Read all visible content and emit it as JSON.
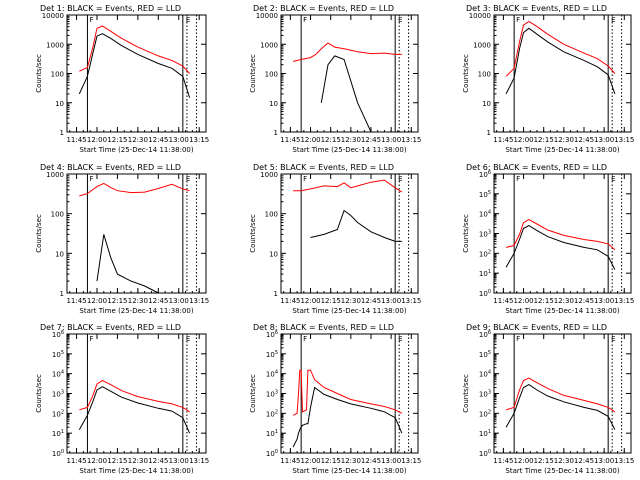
{
  "page": {
    "width": 640,
    "height": 480
  },
  "colors": {
    "events": "#000000",
    "lld": "#ff0000",
    "axes": "#000000",
    "background": "#ffffff"
  },
  "shared": {
    "xlabel": "Start Time (25-Dec-14 11:38:00)",
    "ylabel": "Counts/sec",
    "xticks": [
      "11:45",
      "12:00",
      "12:15",
      "12:30",
      "12:45",
      "13:00",
      "13:15"
    ],
    "xlim": [
      "11:38",
      "13:20"
    ],
    "solid_vlines": [
      "11:53",
      "13:03"
    ],
    "dotted_vlines": [
      "13:06",
      "13:13"
    ],
    "marker_F_text": "F",
    "marker_E_text": "E"
  },
  "chart_data": [
    {
      "id": "det1",
      "type": "line",
      "title": "Det 1: BLACK = Events, RED = LLD",
      "yscale": "log",
      "ylim": [
        1,
        10000
      ],
      "yticks": [
        "1",
        "10",
        "100",
        "1000",
        "10000"
      ],
      "x": [
        "11:47",
        "11:53",
        "11:57",
        "12:00",
        "12:04",
        "12:10",
        "12:18",
        "12:30",
        "12:45",
        "12:55",
        "13:03",
        "13:08"
      ],
      "series": [
        {
          "name": "LLD",
          "color": "#ff0000",
          "values": [
            120,
            160,
            800,
            3500,
            4200,
            2800,
            1600,
            800,
            400,
            280,
            180,
            100
          ]
        },
        {
          "name": "Events",
          "color": "#000000",
          "values": [
            20,
            80,
            500,
            1900,
            2300,
            1600,
            900,
            450,
            220,
            150,
            80,
            15
          ]
        }
      ]
    },
    {
      "id": "det2",
      "type": "line",
      "title": "Det 2: BLACK = Events, RED = LLD",
      "yscale": "log",
      "ylim": [
        1,
        10000
      ],
      "yticks": [
        "1",
        "10",
        "100",
        "1000",
        "10000"
      ],
      "x": [
        "11:47",
        "11:53",
        "12:00",
        "12:04",
        "12:08",
        "12:13",
        "12:18",
        "12:25",
        "12:35",
        "12:45",
        "12:55",
        "13:03",
        "13:08"
      ],
      "series": [
        {
          "name": "LLD",
          "color": "#ff0000",
          "values": [
            260,
            300,
            350,
            450,
            700,
            1100,
            800,
            700,
            550,
            480,
            500,
            450,
            450
          ]
        },
        {
          "name": "Events",
          "color": "#000000",
          "values": [
            null,
            null,
            null,
            null,
            10,
            200,
            400,
            300,
            10,
            1,
            null,
            null,
            null
          ]
        }
      ]
    },
    {
      "id": "det3",
      "type": "line",
      "title": "Det 3: BLACK = Events, RED = LLD",
      "yscale": "log",
      "ylim": [
        1,
        10000
      ],
      "yticks": [
        "1",
        "10",
        "100",
        "1000",
        "10000"
      ],
      "x": [
        "11:47",
        "11:53",
        "11:57",
        "12:00",
        "12:04",
        "12:10",
        "12:18",
        "12:30",
        "12:45",
        "12:55",
        "13:03",
        "13:08"
      ],
      "series": [
        {
          "name": "LLD",
          "color": "#ff0000",
          "values": [
            80,
            150,
            1200,
            4500,
            6000,
            4000,
            2200,
            1000,
            500,
            320,
            180,
            100
          ]
        },
        {
          "name": "Events",
          "color": "#000000",
          "values": [
            20,
            70,
            700,
            2500,
            3500,
            2200,
            1200,
            550,
            280,
            170,
            90,
            20
          ]
        }
      ]
    },
    {
      "id": "det4",
      "type": "line",
      "title": "Det 4: BLACK = Events, RED = LLD",
      "yscale": "log",
      "ylim": [
        1,
        1000
      ],
      "yticks": [
        "1",
        "10",
        "100",
        "1000"
      ],
      "x": [
        "11:47",
        "11:53",
        "12:00",
        "12:05",
        "12:10",
        "12:15",
        "12:25",
        "12:35",
        "12:45",
        "12:55",
        "13:03",
        "13:08"
      ],
      "series": [
        {
          "name": "LLD",
          "color": "#ff0000",
          "values": [
            280,
            320,
            480,
            580,
            460,
            380,
            340,
            350,
            430,
            550,
            420,
            380
          ]
        },
        {
          "name": "Events",
          "color": "#000000",
          "values": [
            null,
            null,
            2,
            30,
            8,
            3,
            2,
            1.5,
            1,
            null,
            null,
            null
          ]
        }
      ]
    },
    {
      "id": "det5",
      "type": "line",
      "title": "Det 5: BLACK = Events, RED = LLD",
      "yscale": "log",
      "ylim": [
        1,
        1000
      ],
      "yticks": [
        "1",
        "10",
        "100",
        "1000"
      ],
      "x": [
        "11:47",
        "11:53",
        "12:00",
        "12:10",
        "12:20",
        "12:25",
        "12:30",
        "12:35",
        "12:45",
        "12:55",
        "13:03",
        "13:08"
      ],
      "series": [
        {
          "name": "LLD",
          "color": "#ff0000",
          "values": [
            380,
            380,
            420,
            500,
            480,
            600,
            450,
            500,
            620,
            700,
            450,
            350
          ]
        },
        {
          "name": "Events",
          "color": "#000000",
          "values": [
            null,
            null,
            25,
            30,
            40,
            120,
            90,
            60,
            35,
            25,
            20,
            20
          ]
        }
      ]
    },
    {
      "id": "det6",
      "type": "line",
      "title": "Det 6: BLACK = Events, RED = LLD",
      "yscale": "log",
      "ylim": [
        1,
        1000000
      ],
      "yticks": [
        "10^0",
        "10^1",
        "10^2",
        "10^3",
        "10^4",
        "10^5",
        "10^6"
      ],
      "x": [
        "11:47",
        "11:53",
        "11:57",
        "12:00",
        "12:04",
        "12:10",
        "12:18",
        "12:30",
        "12:45",
        "12:55",
        "13:03",
        "13:08"
      ],
      "series": [
        {
          "name": "LLD",
          "color": "#ff0000",
          "values": [
            200,
            250,
            900,
            3500,
            5000,
            3000,
            1500,
            800,
            500,
            400,
            300,
            150
          ]
        },
        {
          "name": "Events",
          "color": "#000000",
          "values": [
            20,
            100,
            500,
            1800,
            2500,
            1400,
            700,
            350,
            200,
            150,
            70,
            15
          ]
        }
      ]
    },
    {
      "id": "det7",
      "type": "line",
      "title": "Det 7: BLACK = Events, RED = LLD",
      "yscale": "log",
      "ylim": [
        1,
        1000000
      ],
      "yticks": [
        "10^0",
        "10^1",
        "10^2",
        "10^3",
        "10^4",
        "10^5",
        "10^6"
      ],
      "x": [
        "11:47",
        "11:53",
        "11:57",
        "12:00",
        "12:04",
        "12:10",
        "12:18",
        "12:30",
        "12:45",
        "12:55",
        "13:03",
        "13:08"
      ],
      "series": [
        {
          "name": "LLD",
          "color": "#ff0000",
          "values": [
            150,
            200,
            800,
            3000,
            4500,
            2800,
            1400,
            700,
            400,
            300,
            200,
            120
          ]
        },
        {
          "name": "Events",
          "color": "#000000",
          "values": [
            15,
            80,
            400,
            1500,
            2200,
            1300,
            650,
            330,
            180,
            130,
            60,
            10
          ]
        }
      ]
    },
    {
      "id": "det8",
      "type": "line",
      "title": "Det 8: BLACK = Events, RED = LLD",
      "yscale": "log",
      "ylim": [
        1,
        1000000
      ],
      "yticks": [
        "10^0",
        "10^1",
        "10^2",
        "10^3",
        "10^4",
        "10^5",
        "10^6"
      ],
      "x": [
        "11:47",
        "11:50",
        "11:51",
        "11:52",
        "11:53",
        "11:54",
        "11:57",
        "11:58",
        "12:00",
        "12:03",
        "12:10",
        "12:20",
        "12:30",
        "12:45",
        "12:55",
        "13:03",
        "13:08"
      ],
      "series": [
        {
          "name": "LLD",
          "color": "#ff0000",
          "values": [
            80,
            100,
            1000,
            15000,
            15000,
            120,
            150,
            15000,
            15000,
            5000,
            2000,
            1000,
            500,
            300,
            220,
            150,
            100
          ]
        },
        {
          "name": "Events",
          "color": "#000000",
          "values": [
            2,
            5,
            10,
            15,
            20,
            25,
            30,
            30,
            200,
            2000,
            900,
            500,
            300,
            180,
            120,
            60,
            10
          ]
        }
      ]
    },
    {
      "id": "det9",
      "type": "line",
      "title": "Det 9: BLACK = Events, RED = LLD",
      "yscale": "log",
      "ylim": [
        1,
        1000000
      ],
      "yticks": [
        "10^0",
        "10^1",
        "10^2",
        "10^3",
        "10^4",
        "10^5",
        "10^6"
      ],
      "x": [
        "11:47",
        "11:53",
        "11:57",
        "12:00",
        "12:04",
        "12:10",
        "12:18",
        "12:30",
        "12:45",
        "12:55",
        "13:03",
        "13:08"
      ],
      "series": [
        {
          "name": "LLD",
          "color": "#ff0000",
          "values": [
            150,
            200,
            1500,
            4500,
            6000,
            3500,
            1800,
            800,
            450,
            300,
            200,
            120
          ]
        },
        {
          "name": "Events",
          "color": "#000000",
          "values": [
            20,
            100,
            600,
            2000,
            2800,
            1500,
            750,
            380,
            200,
            140,
            70,
            15
          ]
        }
      ]
    }
  ]
}
